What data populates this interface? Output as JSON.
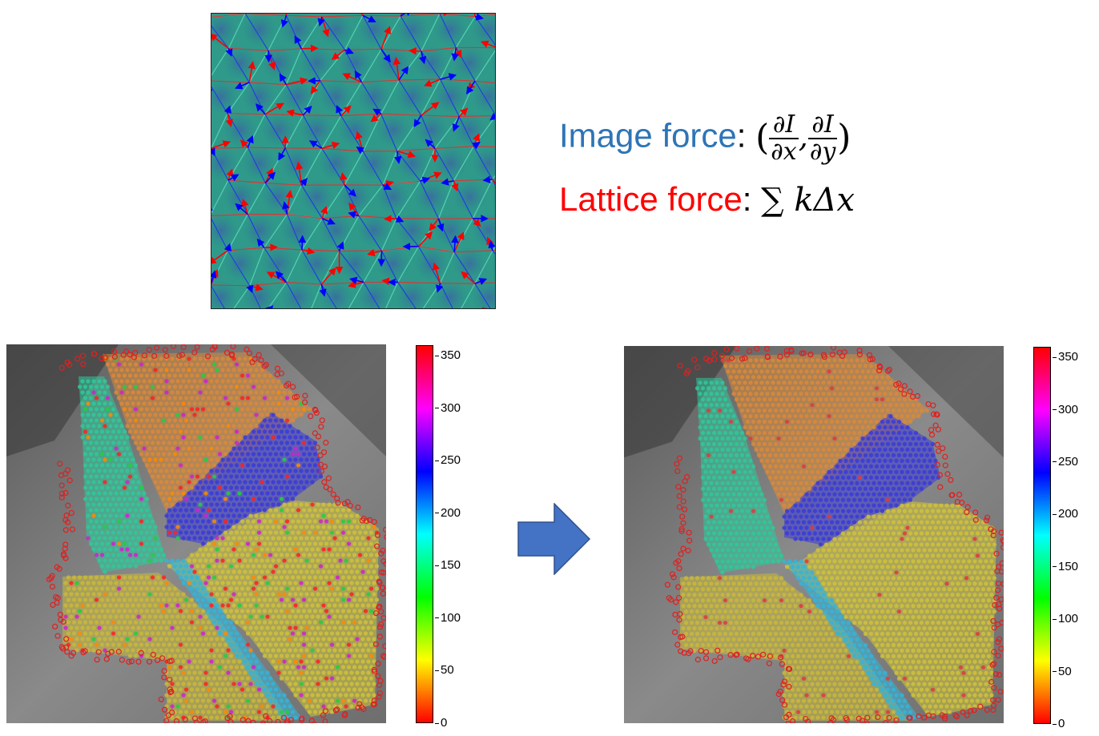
{
  "formula": {
    "image_force_label": "Image force",
    "lattice_force_label": "Lattice force",
    "colon": ":",
    "image_force_expr": {
      "open_paren": "(",
      "num1": "∂I",
      "den1": "∂x",
      "comma": ",",
      "num2": "∂I",
      "den2": "∂y",
      "close_paren": ")"
    },
    "lattice_force_expr": "∑ kΔx"
  },
  "colorbar": {
    "ticks": [
      "350",
      "300",
      "250",
      "200",
      "150",
      "100",
      "50",
      "0"
    ],
    "tick_values": [
      350,
      300,
      250,
      200,
      150,
      100,
      50,
      0
    ],
    "range": [
      0,
      360
    ]
  },
  "colors": {
    "image_force": "#2e75b6",
    "lattice_force": "#ff0000",
    "arrow": "#4472c4"
  }
}
